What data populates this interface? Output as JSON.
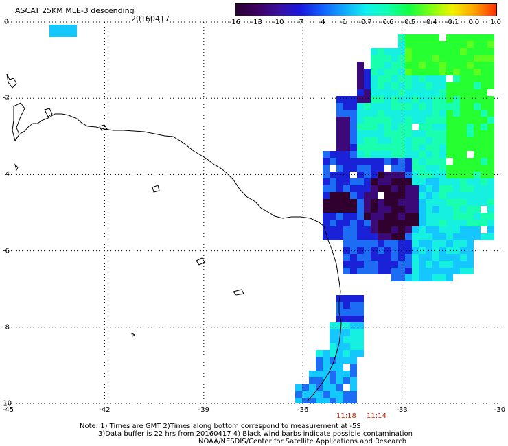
{
  "title": "ASCAT 25KM MLE-3 descending",
  "date": "20160417",
  "colorbar": {
    "labels": [
      "-16",
      "-13",
      "-10",
      "-7",
      "-4",
      "-1",
      "-0.7",
      "-0.6",
      "-0.5",
      "-0.4",
      "-0.1",
      "0.0",
      "1.0"
    ],
    "colors": [
      "#2a0030",
      "#3d0060",
      "#3a10a0",
      "#1818e0",
      "#1060ff",
      "#10a8ff",
      "#10f0f0",
      "#10ffb0",
      "#10ff40",
      "#80ff10",
      "#f0f000",
      "#ffa000",
      "#ff3000"
    ]
  },
  "axes": {
    "x_ticks": [
      "-45",
      "-42",
      "-39",
      "-36",
      "-33",
      "-30"
    ],
    "y_ticks": [
      "0",
      "-2",
      "-4",
      "-6",
      "-8",
      "-10"
    ],
    "x_range": [
      -45,
      -30
    ],
    "y_range": [
      -10,
      0
    ]
  },
  "pass_times": [
    "11:18",
    "11:14"
  ],
  "notes": [
    "Note: 1) Times are GMT 2)Times along bottom correspond to measurement at -5S",
    "3)Data buffer is 22 hrs from 20160417 4) Black wind barbs indicate possible contamination",
    "NOAA/NESDIS/Center for Satellite Applications and Research"
  ],
  "map_data": {
    "region": "Northeast Brazil coast",
    "field": "MLE-3",
    "palette": {
      "deep_purple": "#30002e",
      "purple": "#3c0a78",
      "blue": "#1a22d8",
      "light_blue": "#1c6cf4",
      "sky": "#14c8ff",
      "cyan": "#16f0e0",
      "aqua_green": "#18ffb0",
      "green": "#26ff30",
      "green_light": "#5cff20"
    },
    "grid": "dotted"
  }
}
